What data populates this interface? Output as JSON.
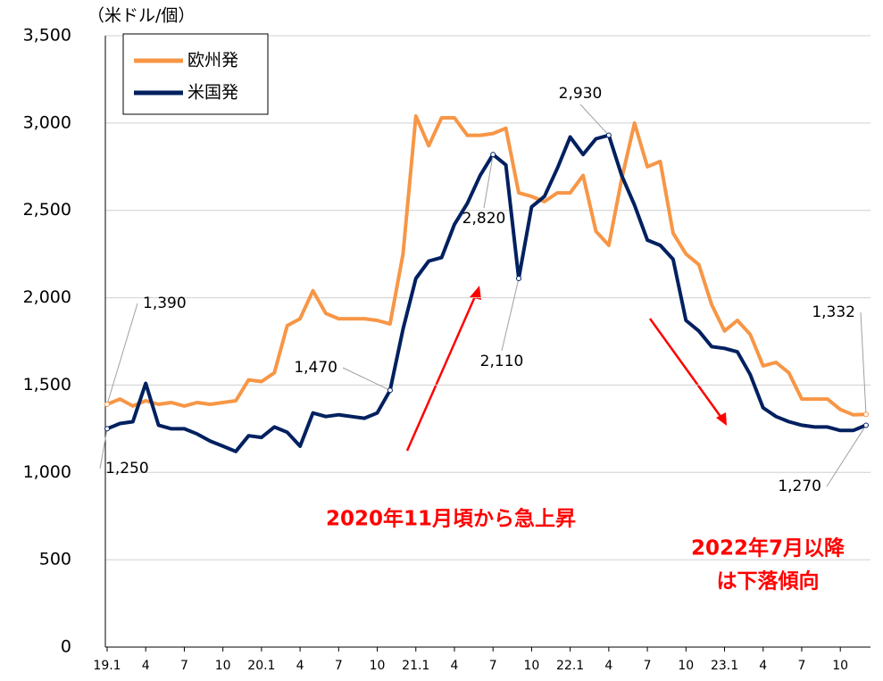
{
  "chart_data": {
    "type": "line",
    "y_axis_label": "（米ドル/個）",
    "categories": [
      "19.1",
      null,
      null,
      "4",
      null,
      null,
      "7",
      null,
      null,
      "10",
      null,
      null,
      "20.1",
      null,
      null,
      "4",
      null,
      null,
      "7",
      null,
      null,
      "10",
      null,
      null,
      "21.1",
      null,
      null,
      "4",
      null,
      null,
      "7",
      null,
      null,
      "10",
      null,
      null,
      "22.1",
      null,
      null,
      "4",
      null,
      null,
      "7",
      null,
      null,
      "10",
      null,
      null,
      "23.1",
      null,
      null,
      "4",
      null,
      null,
      "7",
      null,
      null,
      "10",
      null,
      null
    ],
    "series": [
      {
        "name": "欧州発",
        "color": "#f79646",
        "values": [
          1390,
          1420,
          1380,
          1410,
          1390,
          1400,
          1380,
          1400,
          1390,
          1400,
          1410,
          1530,
          1520,
          1570,
          1840,
          1880,
          2040,
          1910,
          1880,
          1880,
          1880,
          1870,
          1850,
          2250,
          3040,
          2870,
          3030,
          3030,
          2930,
          2930,
          2940,
          2970,
          2600,
          2580,
          2550,
          2600,
          2600,
          2700,
          2380,
          2300,
          2680,
          3000,
          2750,
          2780,
          2370,
          2250,
          2190,
          1960,
          1810,
          1870,
          1790,
          1610,
          1630,
          1570,
          1420,
          1420,
          1420,
          1360,
          1330,
          1332
        ],
        "value_labels": [
          "1,390",
          null,
          null,
          null,
          null,
          null,
          null,
          null,
          null,
          null,
          null,
          null,
          null,
          null,
          null,
          null,
          null,
          null,
          null,
          null,
          null,
          null,
          null,
          null,
          null,
          null,
          null,
          null,
          null,
          null,
          null,
          null,
          null,
          null,
          null,
          null,
          null,
          null,
          null,
          null,
          null,
          null,
          null,
          null,
          null,
          null,
          null,
          null,
          null,
          null,
          null,
          null,
          null,
          null,
          null,
          null,
          null,
          null,
          null,
          "1,332"
        ]
      },
      {
        "name": "米国発",
        "color": "#002060",
        "values": [
          1250,
          1280,
          1290,
          1510,
          1270,
          1250,
          1250,
          1220,
          1180,
          1150,
          1120,
          1210,
          1200,
          1260,
          1230,
          1150,
          1340,
          1320,
          1330,
          1320,
          1310,
          1340,
          1470,
          1820,
          2110,
          2210,
          2230,
          2420,
          2540,
          2700,
          2820,
          2760,
          2110,
          2520,
          2580,
          2740,
          2920,
          2820,
          2910,
          2930,
          2700,
          2530,
          2330,
          2300,
          2220,
          1870,
          1810,
          1720,
          1710,
          1690,
          1560,
          1370,
          1320,
          1290,
          1270,
          1260,
          1260,
          1240,
          1240,
          1270
        ],
        "value_labels": [
          "1,250",
          null,
          null,
          null,
          null,
          null,
          null,
          null,
          null,
          null,
          null,
          null,
          null,
          null,
          null,
          null,
          null,
          null,
          null,
          null,
          null,
          null,
          "1,470",
          null,
          null,
          null,
          null,
          null,
          null,
          null,
          "2,820",
          null,
          "2,110",
          null,
          null,
          null,
          null,
          null,
          null,
          "2,930",
          null,
          null,
          null,
          null,
          null,
          null,
          null,
          null,
          null,
          null,
          null,
          null,
          null,
          null,
          null,
          null,
          null,
          null,
          null,
          "1,270"
        ]
      }
    ],
    "ylim": [
      0,
      3500
    ],
    "yticks": [
      0,
      500,
      {
        "value": 1000,
        "label": "1,000"
      },
      {
        "value": 1500,
        "label": "1,500"
      },
      {
        "value": 2000,
        "label": "2,000"
      },
      {
        "value": 2500,
        "label": "2,500"
      },
      {
        "value": 3000,
        "label": "3,000"
      },
      {
        "value": 3500,
        "label": "3,500"
      }
    ],
    "grid": true,
    "legend": "top-left",
    "annotations": [
      "2020年11月頃から急上昇",
      "2022年7月以降",
      "は下落傾向"
    ]
  }
}
